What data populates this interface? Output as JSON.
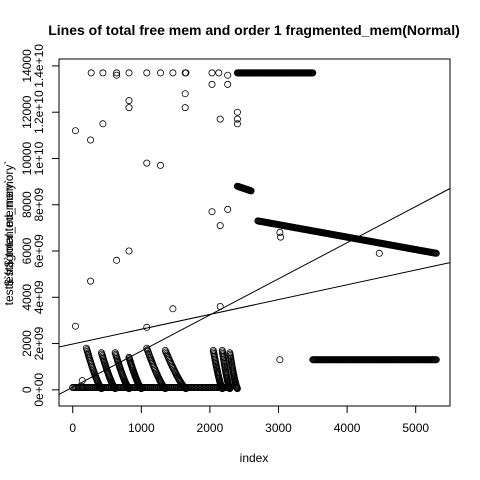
{
  "chart_data": {
    "type": "scatter",
    "title": "Lines of total free mem and order 1 fragmented_mem(Normal)",
    "xlabel": "index",
    "ylabel": "test$`fragmented_memory`",
    "ylabel_overlap": "test$`total_memory`",
    "xlim": [
      -200,
      5500
    ],
    "ylim": [
      -700000000.0,
      14300000000.0
    ],
    "x_ticks": [
      0,
      1000,
      2000,
      3000,
      4000,
      5000
    ],
    "x_tick_labels": [
      "0",
      "1000",
      "2000",
      "3000",
      "4000",
      "5000"
    ],
    "y_ticks": [
      0,
      2000000000.0,
      4000000000.0,
      6000000000.0,
      8000000000.0,
      10000000000.0,
      12000000000.0,
      14000000000.0
    ],
    "y_tick_labels_a": [
      "0e+00",
      "2e+09",
      "4e+09",
      "6e+09",
      "8e+09",
      "1e+10",
      "1.2e+10",
      "1.4e+10"
    ],
    "y_tick_labels_b": [
      "0",
      "2000",
      "4000",
      "6000",
      "8000",
      "10000",
      "12000",
      "14000"
    ],
    "scattered_points": [
      [
        40,
        2750000000.0
      ],
      [
        40,
        11200000000.0
      ],
      [
        140,
        400000000.0
      ],
      [
        140,
        100000000.0
      ],
      [
        260,
        10800000000.0
      ],
      [
        260,
        4700000000.0
      ],
      [
        270,
        13700000000.0
      ],
      [
        440,
        13700000000.0
      ],
      [
        440,
        11500000000.0
      ],
      [
        640,
        13700000000.0
      ],
      [
        640,
        13600000000.0
      ],
      [
        640,
        5600000000.0
      ],
      [
        820,
        13700000000.0
      ],
      [
        820,
        12500000000.0
      ],
      [
        820,
        12200000000.0
      ],
      [
        820,
        6000000000.0
      ],
      [
        1080,
        13700000000.0
      ],
      [
        1080,
        9800000000.0
      ],
      [
        1080,
        2700000000.0
      ],
      [
        1280,
        13700000000.0
      ],
      [
        1280,
        9700000000.0
      ],
      [
        1460,
        13700000000.0
      ],
      [
        1460,
        3500000000.0
      ],
      [
        1640,
        13700000000.0
      ],
      [
        1640,
        12800000000.0
      ],
      [
        1640,
        12200000000.0
      ],
      [
        1650,
        13700000000.0
      ],
      [
        2030,
        13700000000.0
      ],
      [
        2030,
        13200000000.0
      ],
      [
        2030,
        7700000000.0
      ],
      [
        2130,
        13700000000.0
      ],
      [
        2150,
        11700000000.0
      ],
      [
        2150,
        7100000000.0
      ],
      [
        2150,
        3600000000.0
      ],
      [
        2260,
        13200000000.0
      ],
      [
        2260,
        13600000000.0
      ],
      [
        2260,
        7800000000.0
      ],
      [
        2400,
        12000000000.0
      ],
      [
        2400,
        11700000000.0
      ],
      [
        2400,
        11500000000.0
      ],
      [
        3020,
        6800000000.0
      ],
      [
        3020,
        1300000000.0
      ],
      [
        3030,
        6600000000.0
      ],
      [
        4470,
        5900000000.0
      ]
    ],
    "dense_segments": [
      {
        "x0": 2400,
        "x1": 3500,
        "y0": 13700000000.0,
        "y1": 13700000000.0,
        "n": 150
      },
      {
        "x0": 2400,
        "x1": 2600,
        "y0": 8800000000.0,
        "y1": 8600000000.0,
        "n": 30
      },
      {
        "x0": 2700,
        "x1": 5300,
        "y0": 7300000000.0,
        "y1": 5900000000.0,
        "n": 230
      },
      {
        "x0": 3500,
        "x1": 5300,
        "y0": 1300000000.0,
        "y1": 1300000000.0,
        "n": 170
      },
      {
        "x0": 0,
        "x1": 2300,
        "y0": 100000000.0,
        "y1": 100000000.0,
        "n": 120
      }
    ],
    "cycles": [
      {
        "x0": 200,
        "x1": 420,
        "ymax": 1750000000.0
      },
      {
        "x0": 420,
        "x1": 620,
        "ymax": 1550000000.0
      },
      {
        "x0": 620,
        "x1": 820,
        "ymax": 1550000000.0
      },
      {
        "x0": 820,
        "x1": 1000,
        "ymax": 1350000000.0
      },
      {
        "x0": 1080,
        "x1": 1350,
        "ymax": 1750000000.0
      },
      {
        "x0": 1350,
        "x1": 1650,
        "ymax": 1650000000.0
      },
      {
        "x0": 2050,
        "x1": 2180,
        "ymax": 1650000000.0
      },
      {
        "x0": 2180,
        "x1": 2290,
        "ymax": 1650000000.0
      },
      {
        "x0": 2290,
        "x1": 2400,
        "ymax": 1550000000.0
      }
    ],
    "regression_lines": [
      {
        "x0": -200,
        "y0": -200000000.0,
        "x1": 5500,
        "y1": 8700000000.0
      },
      {
        "x0": -200,
        "y0": 1850000000.0,
        "x1": 5500,
        "y1": 5500000000.0
      }
    ]
  }
}
